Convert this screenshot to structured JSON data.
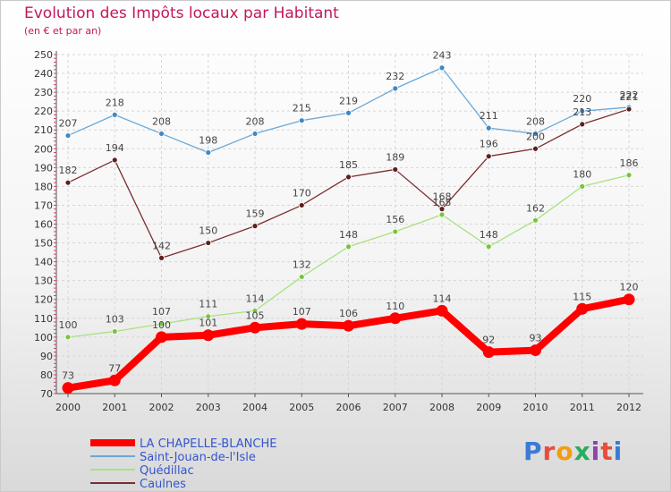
{
  "title": "Evolution des Impôts locaux par Habitant",
  "subtitle": "(en € et par an)",
  "logo": {
    "text": "Proxiti",
    "letter_colors": [
      "#3a7bd5",
      "#e84c3d",
      "#f39c12",
      "#27ae60",
      "#8e44ad",
      "#e84c3d",
      "#3a7bd5"
    ]
  },
  "chart_data": {
    "type": "line",
    "x": [
      "2000",
      "2001",
      "2002",
      "2003",
      "2004",
      "2005",
      "2006",
      "2007",
      "2008",
      "2009",
      "2010",
      "2011",
      "2012"
    ],
    "ylim": [
      70,
      250
    ],
    "yticks": [
      70,
      80,
      90,
      100,
      110,
      120,
      130,
      140,
      150,
      160,
      170,
      180,
      190,
      200,
      210,
      220,
      230,
      240,
      250
    ],
    "grid": true,
    "legend_position": "bottom",
    "series": [
      {
        "name": "LA CHAPELLE-BLANCHE",
        "color": "#ff0000",
        "thick": true,
        "values": [
          73,
          77,
          100,
          101,
          105,
          107,
          106,
          110,
          114,
          92,
          93,
          115,
          120
        ]
      },
      {
        "name": "Saint-Jouan-de-l'Isle",
        "color": "#6aa8d8",
        "marker": "#3f88c5",
        "thick": false,
        "values": [
          207,
          218,
          208,
          198,
          208,
          215,
          219,
          232,
          243,
          211,
          208,
          220,
          222
        ]
      },
      {
        "name": "Quédillac",
        "color": "#a8e27f",
        "marker": "#78c43e",
        "thick": false,
        "values": [
          100,
          103,
          107,
          111,
          114,
          132,
          148,
          156,
          165,
          148,
          162,
          180,
          186
        ]
      },
      {
        "name": "Caulnes",
        "color": "#7a2e2e",
        "marker": "#5c1f1f",
        "thick": false,
        "values": [
          182,
          194,
          142,
          150,
          159,
          170,
          185,
          189,
          168,
          196,
          200,
          213,
          221
        ]
      }
    ]
  }
}
